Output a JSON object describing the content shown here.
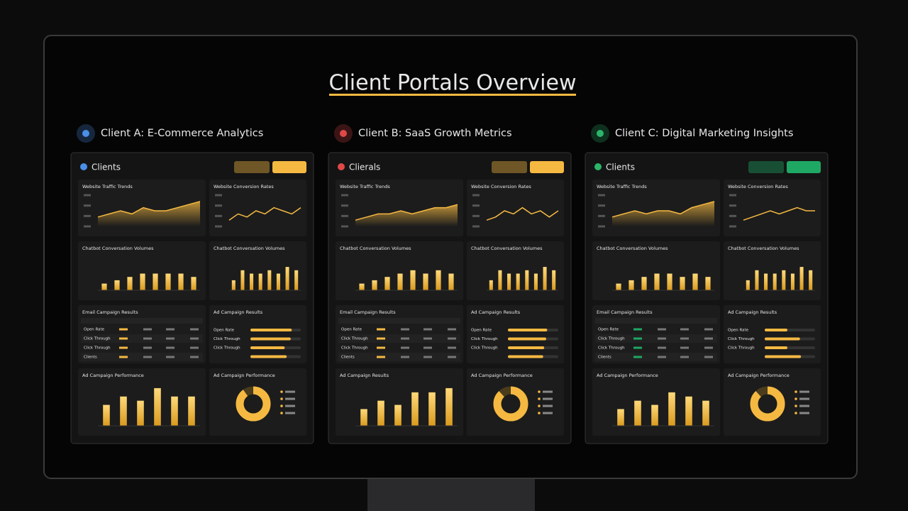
{
  "title": "Client Portals Overview",
  "clients": [
    {
      "heading": "Client A: E-Commerce Analytics",
      "brand": "Clients",
      "accent": "#f5b942",
      "icon": "#4a8fe8",
      "traffic": {
        "title": "Website Traffic Trends",
        "ylim": [
          0,
          10
        ],
        "values": [
          3,
          4,
          5,
          4,
          6,
          5,
          5,
          6,
          7,
          8
        ]
      },
      "conversion": {
        "title": "Website Conversion Rates",
        "ylim": [
          0,
          10
        ],
        "values": [
          2,
          4,
          3,
          5,
          4,
          6,
          5,
          4,
          6
        ]
      },
      "chatbot1": {
        "title": "Chatbot Conversation Volumes",
        "ylim": [
          0,
          10
        ],
        "values": [
          2,
          3,
          4,
          5,
          5,
          5,
          5,
          4
        ]
      },
      "chatbot2": {
        "title": "Chatbot Conversation Volumes",
        "ylim": [
          0,
          10
        ],
        "values": [
          3,
          6,
          5,
          5,
          6,
          5,
          7,
          6
        ]
      },
      "email": {
        "title": "Email Campaign Results",
        "rows": [
          "Open Rate",
          "Click Through",
          "Click Through",
          "Clients"
        ]
      },
      "adResults": {
        "title": "Ad Campaign Results",
        "xlim": [
          0,
          100
        ],
        "labels": [
          "Open Rate",
          "Click Through",
          "Click Through",
          null
        ],
        "values": [
          82,
          80,
          68,
          72
        ]
      },
      "performance": {
        "title": "Ad Campaign Performance",
        "ylim": [
          0,
          10
        ],
        "values": [
          5,
          7,
          6,
          9,
          7,
          7
        ]
      },
      "donut": {
        "title": "Ad Campaign Performance",
        "value": 90
      }
    },
    {
      "heading": "Client B: SaaS Growth Metrics",
      "brand": "Clierals",
      "accent": "#f5b942",
      "icon": "#e04848",
      "traffic": {
        "title": "Website Traffic Trends",
        "ylim": [
          0,
          10
        ],
        "values": [
          2,
          3,
          4,
          4,
          5,
          4,
          5,
          6,
          6,
          7
        ]
      },
      "conversion": {
        "title": "Website Conversion Rates",
        "ylim": [
          0,
          10
        ],
        "values": [
          2,
          3,
          5,
          4,
          6,
          4,
          5,
          3,
          5
        ]
      },
      "chatbot1": {
        "title": "Chatbot Conversation Volumes",
        "ylim": [
          0,
          10
        ],
        "values": [
          2,
          3,
          4,
          5,
          6,
          5,
          6,
          5
        ]
      },
      "chatbot2": {
        "title": "Chatbot Conversation Volumes",
        "ylim": [
          0,
          10
        ],
        "values": [
          3,
          6,
          5,
          5,
          6,
          5,
          7,
          6
        ]
      },
      "email": {
        "title": "Email Campaign Results",
        "rows": [
          "Open Rate",
          "Click Through",
          "Click Through",
          "Clients"
        ]
      },
      "adResults": {
        "title": "Ad Campaign Results",
        "xlim": [
          0,
          100
        ],
        "labels": [
          "Open Rate",
          "Click Through",
          "Click Through",
          null
        ],
        "values": [
          78,
          76,
          72,
          70
        ]
      },
      "performance": {
        "title": "Ad Campaign Results",
        "ylim": [
          0,
          10
        ],
        "values": [
          4,
          6,
          5,
          8,
          8,
          9
        ]
      },
      "donut": {
        "title": "Ad Campaign Performance",
        "value": 88
      }
    },
    {
      "heading": "Client C: Digital Marketing Insights",
      "brand": "Clients",
      "accent": "#1fa864",
      "icon": "#2cb56a",
      "traffic": {
        "title": "Website Traffic Trends",
        "ylim": [
          0,
          10
        ],
        "values": [
          3,
          4,
          5,
          4,
          5,
          5,
          4,
          6,
          7,
          8
        ]
      },
      "conversion": {
        "title": "Website Conversion Rates",
        "ylim": [
          0,
          10
        ],
        "values": [
          2,
          3,
          4,
          5,
          4,
          5,
          6,
          5,
          5
        ]
      },
      "chatbot1": {
        "title": "Chatbot Conversation Volumes",
        "ylim": [
          0,
          10
        ],
        "values": [
          2,
          3,
          4,
          5,
          5,
          4,
          5,
          4
        ]
      },
      "chatbot2": {
        "title": "Chatbot Conversation Volumes",
        "ylim": [
          0,
          10
        ],
        "values": [
          3,
          6,
          5,
          5,
          6,
          5,
          7,
          6
        ]
      },
      "email": {
        "title": "Email Campaign Results",
        "rows": [
          "Open Rate",
          "Click Through",
          "Click Through",
          "Clients"
        ]
      },
      "adResults": {
        "title": "Ad Campaign Results",
        "xlim": [
          0,
          100
        ],
        "labels": [
          "Open Rate",
          "Click Through",
          "Click Through",
          null
        ],
        "values": [
          45,
          70,
          45,
          72
        ]
      },
      "performance": {
        "title": "Ad Campaign Performance",
        "ylim": [
          0,
          10
        ],
        "values": [
          4,
          6,
          5,
          8,
          7,
          6
        ]
      },
      "donut": {
        "title": "Ad Campaign Performance",
        "value": 88
      }
    }
  ]
}
